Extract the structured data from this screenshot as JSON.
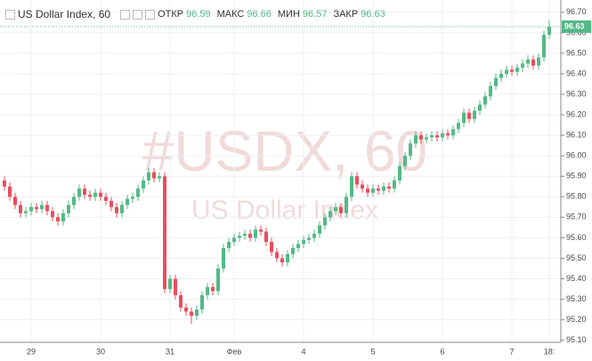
{
  "chart_data": {
    "type": "candlestick",
    "title": "US Dollar Index, 60",
    "legend_labels": [
      "ОТКР",
      "МАКС",
      "МИН",
      "ЗАКР"
    ],
    "watermark": "#USDX, 60",
    "watermark_subtitle": "US Dollar Index",
    "up_color": "#53b987",
    "down_color": "#eb4d5c",
    "grid": true,
    "ylim": [
      95.09,
      96.76
    ],
    "yticks": [
      {
        "value": 95.1,
        "label": "95.10"
      },
      {
        "value": 95.2,
        "label": "95.20"
      },
      {
        "value": 95.3,
        "label": "95.30"
      },
      {
        "value": 95.4,
        "label": "95.40"
      },
      {
        "value": 95.5,
        "label": "95.50"
      },
      {
        "value": 95.6,
        "label": "95.60"
      },
      {
        "value": 95.7,
        "label": "95.70"
      },
      {
        "value": 95.8,
        "label": "95.80"
      },
      {
        "value": 95.9,
        "label": "95.90"
      },
      {
        "value": 96.0,
        "label": "96.00"
      },
      {
        "value": 96.1,
        "label": "96.10"
      },
      {
        "value": 96.2,
        "label": "96.20"
      },
      {
        "value": 96.3,
        "label": "96.30"
      },
      {
        "value": 96.4,
        "label": "96.40"
      },
      {
        "value": 96.5,
        "label": "96.50"
      },
      {
        "value": 96.6,
        "label": "96.60"
      },
      {
        "value": 96.7,
        "label": "96.70"
      }
    ],
    "categories": [
      null,
      null,
      null,
      null,
      null,
      "29",
      null,
      null,
      null,
      null,
      null,
      null,
      null,
      null,
      null,
      null,
      null,
      null,
      "30",
      null,
      null,
      null,
      null,
      null,
      null,
      null,
      null,
      null,
      null,
      null,
      null,
      "31",
      null,
      null,
      null,
      null,
      null,
      null,
      null,
      null,
      null,
      null,
      null,
      "Фев",
      null,
      null,
      null,
      null,
      null,
      null,
      null,
      null,
      null,
      null,
      null,
      null,
      "4",
      null,
      null,
      null,
      null,
      null,
      null,
      null,
      null,
      null,
      null,
      null,
      null,
      "5",
      null,
      null,
      null,
      null,
      null,
      null,
      null,
      null,
      null,
      null,
      null,
      null,
      "6",
      null,
      null,
      null,
      null,
      null,
      null,
      null,
      null,
      null,
      null,
      null,
      null,
      "7",
      null,
      null,
      null,
      null,
      null,
      null,
      "18:"
    ],
    "ohlc": [
      [
        95.88,
        95.9,
        95.83,
        95.85
      ],
      [
        95.85,
        95.87,
        95.78,
        95.8
      ],
      [
        95.8,
        95.82,
        95.74,
        95.76
      ],
      [
        95.76,
        95.78,
        95.7,
        95.72
      ],
      [
        95.72,
        95.75,
        95.7,
        95.73
      ],
      [
        95.73,
        95.77,
        95.71,
        95.75
      ],
      [
        95.75,
        95.77,
        95.72,
        95.74
      ],
      [
        95.74,
        95.78,
        95.72,
        95.76
      ],
      [
        95.76,
        95.78,
        95.71,
        95.73
      ],
      [
        95.73,
        95.75,
        95.68,
        95.7
      ],
      [
        95.7,
        95.72,
        95.66,
        95.68
      ],
      [
        95.68,
        95.74,
        95.66,
        95.72
      ],
      [
        95.72,
        95.78,
        95.7,
        95.76
      ],
      [
        95.76,
        95.82,
        95.74,
        95.8
      ],
      [
        95.8,
        95.86,
        95.78,
        95.84
      ],
      [
        95.84,
        95.86,
        95.79,
        95.81
      ],
      [
        95.81,
        95.83,
        95.78,
        95.8
      ],
      [
        95.8,
        95.84,
        95.78,
        95.82
      ],
      [
        95.82,
        95.84,
        95.78,
        95.8
      ],
      [
        95.8,
        95.82,
        95.76,
        95.78
      ],
      [
        95.78,
        95.8,
        95.73,
        95.75
      ],
      [
        95.75,
        95.77,
        95.7,
        95.72
      ],
      [
        95.72,
        95.78,
        95.7,
        95.76
      ],
      [
        95.76,
        95.81,
        95.74,
        95.79
      ],
      [
        95.79,
        95.82,
        95.77,
        95.8
      ],
      [
        95.8,
        95.86,
        95.78,
        95.84
      ],
      [
        95.84,
        95.9,
        95.82,
        95.88
      ],
      [
        95.88,
        95.94,
        95.86,
        95.92
      ],
      [
        95.92,
        95.94,
        95.87,
        95.89
      ],
      [
        95.89,
        95.92,
        95.87,
        95.9
      ],
      [
        95.9,
        95.92,
        95.33,
        95.35
      ],
      [
        95.35,
        95.42,
        95.33,
        95.4
      ],
      [
        95.4,
        95.42,
        95.3,
        95.32
      ],
      [
        95.32,
        95.34,
        95.24,
        95.26
      ],
      [
        95.26,
        95.28,
        95.22,
        95.24
      ],
      [
        95.24,
        95.26,
        95.18,
        95.22
      ],
      [
        95.22,
        95.27,
        95.2,
        95.25
      ],
      [
        95.25,
        95.34,
        95.23,
        95.32
      ],
      [
        95.32,
        95.38,
        95.3,
        95.36
      ],
      [
        95.36,
        95.38,
        95.32,
        95.34
      ],
      [
        95.34,
        95.47,
        95.32,
        95.45
      ],
      [
        95.45,
        95.57,
        95.43,
        95.55
      ],
      [
        95.55,
        95.6,
        95.53,
        95.58
      ],
      [
        95.58,
        95.62,
        95.56,
        95.6
      ],
      [
        95.6,
        95.63,
        95.58,
        95.61
      ],
      [
        95.61,
        95.64,
        95.59,
        95.62
      ],
      [
        95.62,
        95.64,
        95.58,
        95.6
      ],
      [
        95.6,
        95.66,
        95.58,
        95.64
      ],
      [
        95.64,
        95.66,
        95.61,
        95.63
      ],
      [
        95.63,
        95.65,
        95.56,
        95.58
      ],
      [
        95.58,
        95.6,
        95.51,
        95.53
      ],
      [
        95.53,
        95.55,
        95.48,
        95.5
      ],
      [
        95.5,
        95.52,
        95.46,
        95.48
      ],
      [
        95.48,
        95.54,
        95.46,
        95.52
      ],
      [
        95.52,
        95.57,
        95.5,
        95.55
      ],
      [
        95.55,
        95.59,
        95.53,
        95.57
      ],
      [
        95.57,
        95.61,
        95.55,
        95.59
      ],
      [
        95.59,
        95.62,
        95.57,
        95.6
      ],
      [
        95.6,
        95.64,
        95.58,
        95.62
      ],
      [
        95.62,
        95.68,
        95.6,
        95.66
      ],
      [
        95.66,
        95.72,
        95.64,
        95.7
      ],
      [
        95.7,
        95.75,
        95.68,
        95.73
      ],
      [
        95.73,
        95.77,
        95.71,
        95.75
      ],
      [
        95.75,
        95.77,
        95.7,
        95.72
      ],
      [
        95.72,
        95.82,
        95.7,
        95.8
      ],
      [
        95.8,
        95.92,
        95.78,
        95.9
      ],
      [
        95.9,
        95.92,
        95.84,
        95.86
      ],
      [
        95.86,
        95.88,
        95.82,
        95.84
      ],
      [
        95.84,
        95.86,
        95.8,
        95.82
      ],
      [
        95.82,
        95.86,
        95.8,
        95.84
      ],
      [
        95.84,
        95.86,
        95.81,
        95.83
      ],
      [
        95.83,
        95.87,
        95.81,
        95.85
      ],
      [
        95.85,
        95.87,
        95.82,
        95.84
      ],
      [
        95.84,
        95.9,
        95.82,
        95.88
      ],
      [
        95.88,
        95.97,
        95.86,
        95.95
      ],
      [
        95.95,
        96.02,
        95.93,
        96.0
      ],
      [
        96.0,
        96.08,
        95.98,
        96.06
      ],
      [
        96.06,
        96.12,
        96.04,
        96.1
      ],
      [
        96.1,
        96.12,
        96.06,
        96.08
      ],
      [
        96.08,
        96.11,
        96.06,
        96.09
      ],
      [
        96.09,
        96.12,
        96.07,
        96.1
      ],
      [
        96.1,
        96.12,
        96.07,
        96.09
      ],
      [
        96.09,
        96.13,
        96.07,
        96.11
      ],
      [
        96.11,
        96.13,
        96.08,
        96.1
      ],
      [
        96.1,
        96.15,
        96.08,
        96.13
      ],
      [
        96.13,
        96.18,
        96.11,
        96.16
      ],
      [
        96.16,
        96.23,
        96.14,
        96.21
      ],
      [
        96.21,
        96.23,
        96.16,
        96.18
      ],
      [
        96.18,
        96.24,
        96.16,
        96.22
      ],
      [
        96.22,
        96.27,
        96.2,
        96.25
      ],
      [
        96.25,
        96.31,
        96.23,
        96.29
      ],
      [
        96.29,
        96.36,
        96.27,
        96.34
      ],
      [
        96.34,
        96.4,
        96.32,
        96.38
      ],
      [
        96.38,
        96.42,
        96.36,
        96.4
      ],
      [
        96.4,
        96.44,
        96.38,
        96.42
      ],
      [
        96.42,
        96.44,
        96.39,
        96.41
      ],
      [
        96.41,
        96.45,
        96.39,
        96.43
      ],
      [
        96.43,
        96.47,
        96.41,
        96.45
      ],
      [
        96.45,
        96.49,
        96.43,
        96.47
      ],
      [
        96.47,
        96.49,
        96.42,
        96.44
      ],
      [
        96.44,
        96.5,
        96.42,
        96.48
      ],
      [
        96.48,
        96.61,
        96.46,
        96.59
      ],
      [
        96.59,
        96.66,
        96.57,
        96.63
      ]
    ]
  }
}
